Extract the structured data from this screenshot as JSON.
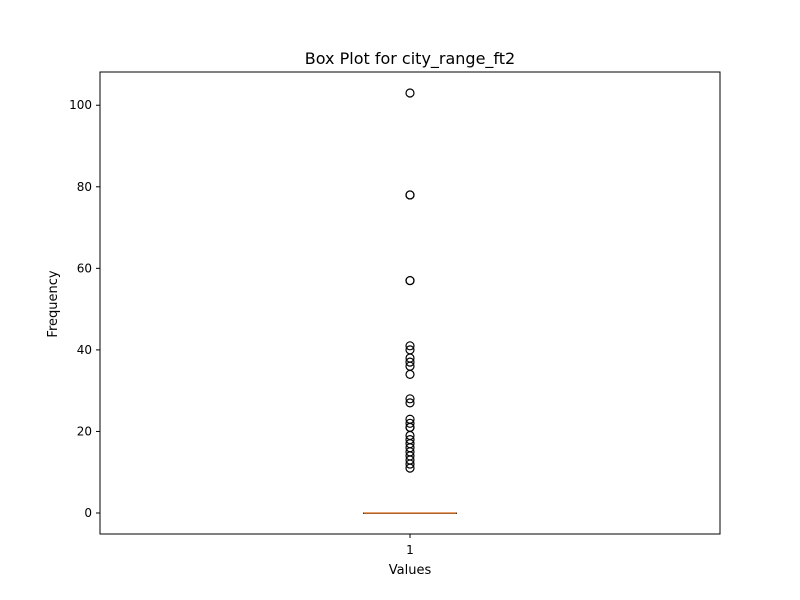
{
  "chart_data": {
    "type": "box",
    "title": "Box Plot for city_range_ft2",
    "xlabel": "Values",
    "ylabel": "Frequency",
    "categories": [
      "1"
    ],
    "ylim": [
      -5.15,
      108.15
    ],
    "yticks": [
      0,
      20,
      40,
      60,
      80,
      100
    ],
    "grid": false,
    "series": [
      {
        "box": {
          "whisker_low": 0,
          "q1": 0,
          "median": 0,
          "q3": 0,
          "whisker_high": 0
        },
        "outliers": [
          103,
          78,
          78,
          57,
          57,
          41,
          40,
          38,
          37,
          36,
          34,
          28,
          27,
          23,
          22,
          21,
          21,
          19,
          18,
          17,
          16,
          15,
          14,
          13,
          12,
          11
        ]
      }
    ],
    "colors": {
      "box": "#000000",
      "median": "#e0823d",
      "outlier": "#000000"
    }
  }
}
